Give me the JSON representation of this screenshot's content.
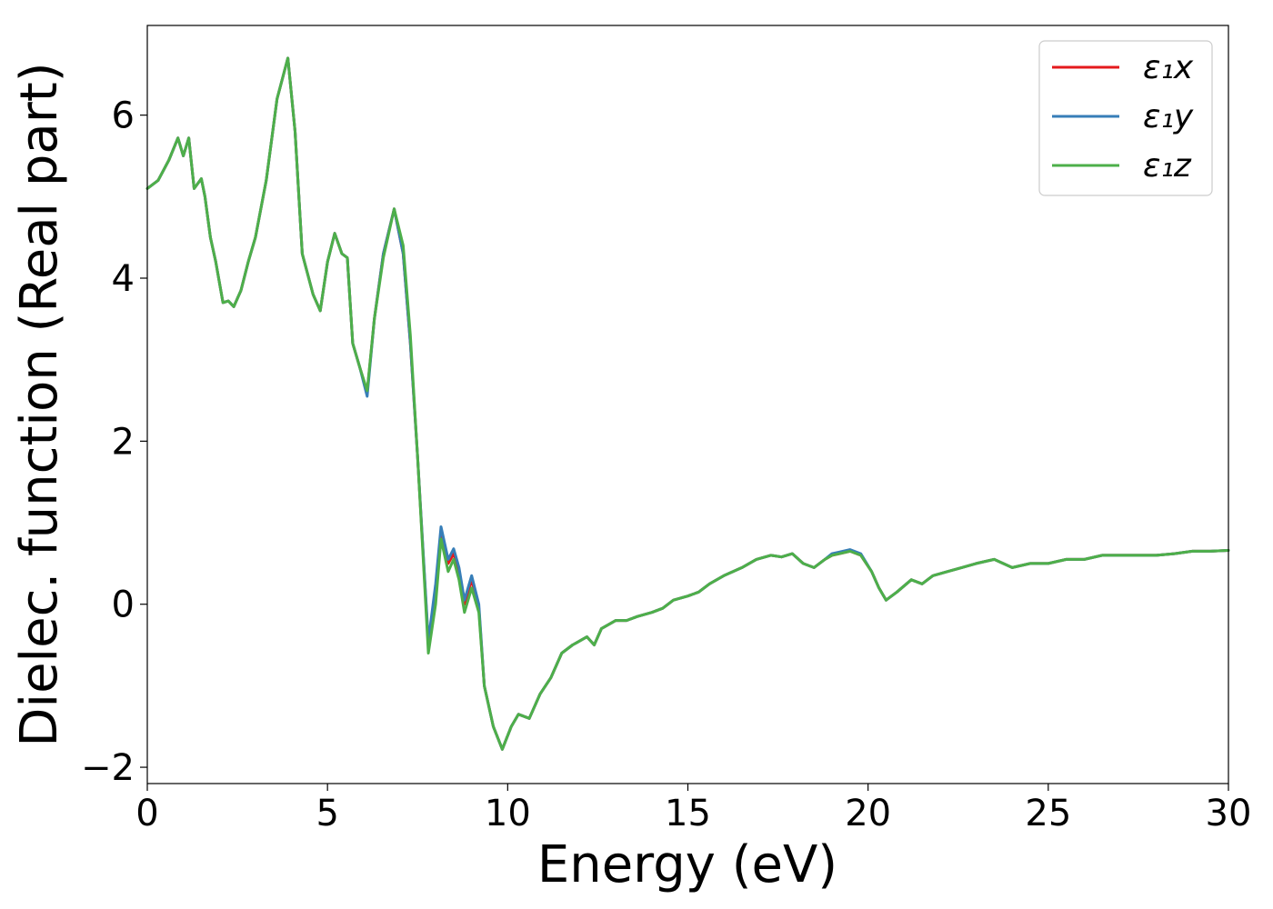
{
  "chart_data": {
    "type": "line",
    "title": "",
    "xlabel": "Energy (eV)",
    "ylabel": "Dielec. function (Real part)",
    "xlim": [
      0,
      30
    ],
    "ylim": [
      -2.2,
      7.1
    ],
    "xticks": [
      0,
      5,
      10,
      15,
      20,
      25,
      30
    ],
    "xtick_labels": [
      "0",
      "5",
      "10",
      "15",
      "20",
      "25",
      "30"
    ],
    "yticks": [
      -2,
      0,
      2,
      4,
      6
    ],
    "ytick_labels": [
      "−2",
      "0",
      "2",
      "4",
      "6"
    ],
    "grid": false,
    "legend_position": "top-right",
    "x": [
      0,
      0.3,
      0.6,
      0.85,
      1.0,
      1.15,
      1.3,
      1.5,
      1.6,
      1.75,
      1.9,
      2.1,
      2.25,
      2.4,
      2.6,
      2.8,
      3.0,
      3.3,
      3.6,
      3.9,
      4.1,
      4.3,
      4.6,
      4.8,
      5.0,
      5.2,
      5.4,
      5.55,
      5.7,
      5.9,
      6.1,
      6.3,
      6.55,
      6.85,
      7.1,
      7.3,
      7.5,
      7.8,
      8.0,
      8.15,
      8.35,
      8.5,
      8.65,
      8.8,
      9.0,
      9.2,
      9.35,
      9.6,
      9.85,
      10.1,
      10.3,
      10.6,
      10.9,
      11.2,
      11.5,
      11.8,
      12.0,
      12.2,
      12.4,
      12.6,
      12.8,
      13.0,
      13.3,
      13.6,
      14.0,
      14.3,
      14.6,
      15.0,
      15.3,
      15.6,
      16.0,
      16.5,
      16.9,
      17.3,
      17.6,
      17.9,
      18.2,
      18.5,
      18.8,
      19.0,
      19.2,
      19.5,
      19.8,
      20.1,
      20.3,
      20.5,
      20.8,
      21.2,
      21.5,
      21.8,
      22.2,
      22.6,
      23.0,
      23.5,
      24.0,
      24.5,
      25.0,
      25.5,
      26.0,
      26.5,
      27.0,
      27.5,
      28.0,
      28.5,
      29.0,
      29.5,
      30.0
    ],
    "series": [
      {
        "name": "ε₁x",
        "color": "#e41a1c",
        "values": [
          5.1,
          5.2,
          5.45,
          5.72,
          5.5,
          5.72,
          5.1,
          5.22,
          5.0,
          4.5,
          4.2,
          3.7,
          3.72,
          3.65,
          3.85,
          4.2,
          4.5,
          5.2,
          6.2,
          6.7,
          5.8,
          4.3,
          3.8,
          3.6,
          4.2,
          4.55,
          4.3,
          4.25,
          3.2,
          2.9,
          2.6,
          3.5,
          4.3,
          4.85,
          4.3,
          3.2,
          1.8,
          -0.5,
          0.2,
          0.9,
          0.5,
          0.62,
          0.4,
          0.0,
          0.3,
          -0.05,
          -1.0,
          -1.5,
          -1.78,
          -1.5,
          -1.35,
          -1.4,
          -1.1,
          -0.9,
          -0.6,
          -0.5,
          -0.45,
          -0.4,
          -0.5,
          -0.3,
          -0.25,
          -0.2,
          -0.2,
          -0.15,
          -0.1,
          -0.05,
          0.05,
          0.1,
          0.15,
          0.25,
          0.35,
          0.45,
          0.55,
          0.6,
          0.58,
          0.62,
          0.5,
          0.45,
          0.55,
          0.6,
          0.62,
          0.65,
          0.6,
          0.4,
          0.2,
          0.05,
          0.15,
          0.3,
          0.25,
          0.35,
          0.4,
          0.45,
          0.5,
          0.55,
          0.45,
          0.5,
          0.5,
          0.55,
          0.55,
          0.6,
          0.6,
          0.6,
          0.6,
          0.62,
          0.65,
          0.65,
          0.66
        ]
      },
      {
        "name": "ε₁y",
        "color": "#377eb8",
        "values": [
          5.1,
          5.2,
          5.45,
          5.72,
          5.5,
          5.72,
          5.1,
          5.22,
          5.0,
          4.5,
          4.2,
          3.7,
          3.72,
          3.65,
          3.85,
          4.2,
          4.5,
          5.2,
          6.2,
          6.7,
          5.8,
          4.3,
          3.8,
          3.6,
          4.2,
          4.55,
          4.3,
          4.25,
          3.2,
          2.9,
          2.55,
          3.5,
          4.3,
          4.85,
          4.3,
          3.2,
          1.8,
          -0.45,
          0.25,
          0.95,
          0.55,
          0.68,
          0.45,
          0.05,
          0.35,
          0.0,
          -1.0,
          -1.5,
          -1.78,
          -1.5,
          -1.35,
          -1.4,
          -1.1,
          -0.9,
          -0.6,
          -0.5,
          -0.45,
          -0.4,
          -0.5,
          -0.3,
          -0.25,
          -0.2,
          -0.2,
          -0.15,
          -0.1,
          -0.05,
          0.05,
          0.1,
          0.15,
          0.25,
          0.35,
          0.45,
          0.55,
          0.6,
          0.58,
          0.62,
          0.5,
          0.45,
          0.55,
          0.62,
          0.64,
          0.67,
          0.62,
          0.4,
          0.2,
          0.05,
          0.15,
          0.3,
          0.25,
          0.35,
          0.4,
          0.45,
          0.5,
          0.55,
          0.45,
          0.5,
          0.5,
          0.55,
          0.55,
          0.6,
          0.6,
          0.6,
          0.6,
          0.62,
          0.65,
          0.65,
          0.66
        ]
      },
      {
        "name": "ε₁z",
        "color": "#4daf4a",
        "values": [
          5.1,
          5.2,
          5.45,
          5.72,
          5.5,
          5.72,
          5.1,
          5.22,
          5.0,
          4.5,
          4.2,
          3.7,
          3.72,
          3.65,
          3.85,
          4.2,
          4.5,
          5.2,
          6.2,
          6.7,
          5.8,
          4.3,
          3.8,
          3.6,
          4.2,
          4.55,
          4.3,
          4.25,
          3.2,
          2.9,
          2.62,
          3.5,
          4.25,
          4.85,
          4.4,
          3.3,
          1.8,
          -0.6,
          0.0,
          0.8,
          0.4,
          0.55,
          0.3,
          -0.1,
          0.2,
          -0.1,
          -1.0,
          -1.5,
          -1.78,
          -1.5,
          -1.35,
          -1.4,
          -1.1,
          -0.9,
          -0.6,
          -0.5,
          -0.45,
          -0.4,
          -0.5,
          -0.3,
          -0.25,
          -0.2,
          -0.2,
          -0.15,
          -0.1,
          -0.05,
          0.05,
          0.1,
          0.15,
          0.25,
          0.35,
          0.45,
          0.55,
          0.6,
          0.58,
          0.62,
          0.5,
          0.45,
          0.55,
          0.6,
          0.62,
          0.65,
          0.6,
          0.4,
          0.2,
          0.05,
          0.15,
          0.3,
          0.25,
          0.35,
          0.4,
          0.45,
          0.5,
          0.55,
          0.45,
          0.5,
          0.5,
          0.55,
          0.55,
          0.6,
          0.6,
          0.6,
          0.6,
          0.62,
          0.65,
          0.65,
          0.66
        ]
      }
    ]
  }
}
